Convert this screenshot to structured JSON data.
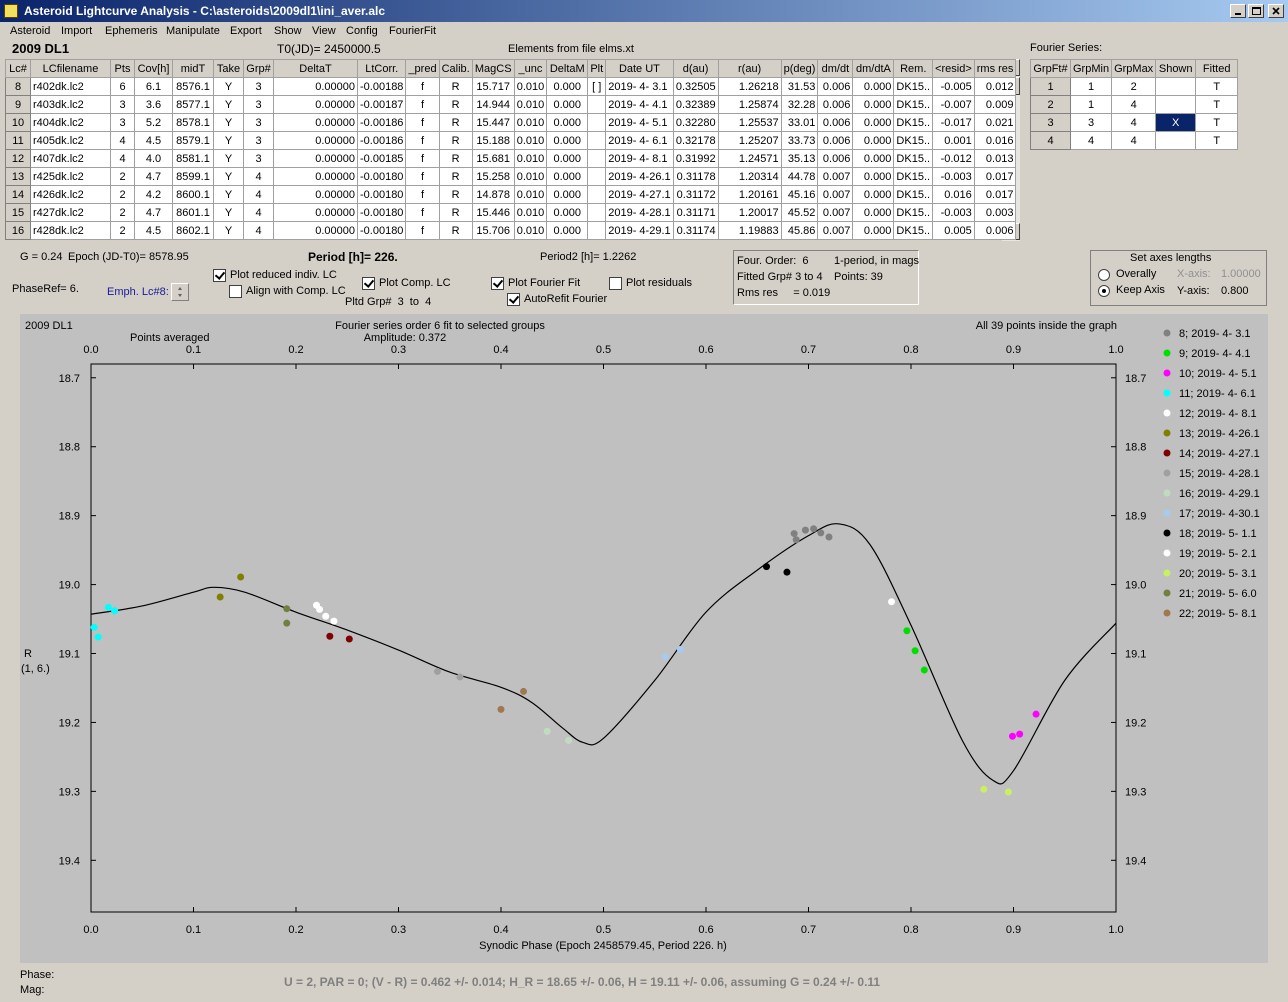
{
  "window": {
    "title": "Asteroid Lightcurve Analysis - C:\\asteroids\\2009dl1\\ini_aver.alc"
  },
  "menu": [
    "Asteroid",
    "Import",
    "Ephemeris",
    "Manipulate",
    "Export",
    "Show",
    "View",
    "Config",
    "FourierFit"
  ],
  "header": {
    "object": "2009 DL1",
    "t0": "T0(JD)= 2450000.5",
    "elements": "Elements from file elms.xt",
    "fourier_title": "Fourier Series:"
  },
  "lc_table": {
    "columns": [
      "Lc#",
      "LCfilename",
      "Pts",
      "Cov[h]",
      "midT",
      "Take",
      "Grp#",
      "DeltaT",
      "LtCorr.",
      "_pred",
      "Calib.",
      "MagCS",
      "_unc",
      "DeltaM",
      "Plt",
      "Date UT",
      "d(au)",
      "r(au)",
      "p(deg)",
      "dm/dt",
      "dm/dtA",
      "Rem.",
      "<resid>",
      "rms res"
    ],
    "rows": [
      [
        "8",
        "r402dk.lc2",
        "6",
        "6.1",
        "8576.1",
        "Y",
        "3",
        "0.00000",
        "-0.00188",
        "f",
        "R",
        "15.717",
        "0.010",
        "0.000",
        "[ ]",
        "2019- 4- 3.1",
        "0.32505",
        "1.26218",
        "31.53",
        "0.006",
        "0.000",
        "DK15..",
        "-0.005",
        "0.012"
      ],
      [
        "9",
        "r403dk.lc2",
        "3",
        "3.6",
        "8577.1",
        "Y",
        "3",
        "0.00000",
        "-0.00187",
        "f",
        "R",
        "14.944",
        "0.010",
        "0.000",
        null,
        "2019- 4- 4.1",
        "0.32389",
        "1.25874",
        "32.28",
        "0.006",
        "0.000",
        "DK15..",
        "-0.007",
        "0.009"
      ],
      [
        "10",
        "r404dk.lc2",
        "3",
        "5.2",
        "8578.1",
        "Y",
        "3",
        "0.00000",
        "-0.00186",
        "f",
        "R",
        "15.447",
        "0.010",
        "0.000",
        null,
        "2019- 4- 5.1",
        "0.32280",
        "1.25537",
        "33.01",
        "0.006",
        "0.000",
        "DK15..",
        "-0.017",
        "0.021"
      ],
      [
        "11",
        "r405dk.lc2",
        "4",
        "4.5",
        "8579.1",
        "Y",
        "3",
        "0.00000",
        "-0.00186",
        "f",
        "R",
        "15.188",
        "0.010",
        "0.000",
        null,
        "2019- 4- 6.1",
        "0.32178",
        "1.25207",
        "33.73",
        "0.006",
        "0.000",
        "DK15..",
        "0.001",
        "0.016"
      ],
      [
        "12",
        "r407dk.lc2",
        "4",
        "4.0",
        "8581.1",
        "Y",
        "3",
        "0.00000",
        "-0.00185",
        "f",
        "R",
        "15.681",
        "0.010",
        "0.000",
        null,
        "2019- 4- 8.1",
        "0.31992",
        "1.24571",
        "35.13",
        "0.006",
        "0.000",
        "DK15..",
        "-0.012",
        "0.013"
      ],
      [
        "13",
        "r425dk.lc2",
        "2",
        "4.7",
        "8599.1",
        "Y",
        "4",
        "0.00000",
        "-0.00180",
        "f",
        "R",
        "15.258",
        "0.010",
        "0.000",
        null,
        "2019- 4-26.1",
        "0.31178",
        "1.20314",
        "44.78",
        "0.007",
        "0.000",
        "DK15..",
        "-0.003",
        "0.017"
      ],
      [
        "14",
        "r426dk.lc2",
        "2",
        "4.2",
        "8600.1",
        "Y",
        "4",
        "0.00000",
        "-0.00180",
        "f",
        "R",
        "14.878",
        "0.010",
        "0.000",
        null,
        "2019- 4-27.1",
        "0.31172",
        "1.20161",
        "45.16",
        "0.007",
        "0.000",
        "DK15..",
        "0.016",
        "0.017"
      ],
      [
        "15",
        "r427dk.lc2",
        "2",
        "4.7",
        "8601.1",
        "Y",
        "4",
        "0.00000",
        "-0.00180",
        "f",
        "R",
        "15.446",
        "0.010",
        "0.000",
        null,
        "2019- 4-28.1",
        "0.31171",
        "1.20017",
        "45.52",
        "0.007",
        "0.000",
        "DK15..",
        "-0.003",
        "0.003"
      ],
      [
        "16",
        "r428dk.lc2",
        "2",
        "4.5",
        "8602.1",
        "Y",
        "4",
        "0.00000",
        "-0.00180",
        "f",
        "R",
        "15.706",
        "0.010",
        "0.000",
        null,
        "2019- 4-29.1",
        "0.31174",
        "1.19883",
        "45.86",
        "0.007",
        "0.000",
        "DK15..",
        "0.005",
        "0.006"
      ]
    ]
  },
  "fourier_table": {
    "columns": [
      "GrpFt#",
      "GrpMin",
      "GrpMax",
      "Shown",
      "Fitted"
    ],
    "rows": [
      [
        "1",
        "1",
        "2",
        null,
        "T"
      ],
      [
        "2",
        "1",
        "4",
        null,
        "T"
      ],
      [
        "3",
        "3",
        "4",
        "X",
        "T"
      ],
      [
        "4",
        "4",
        "4",
        null,
        "T"
      ]
    ]
  },
  "info": {
    "g": "G = 0.24",
    "epoch": "Epoch (JD-T0)= 8578.95",
    "period": "Period [h]= 226.",
    "period2": "Period2 [h]= 1.2262",
    "phase_ref": "PhaseRef= 6.",
    "emph": "Emph. Lc#8:",
    "plotted_groups": "Pltd Grp#  3  to  4"
  },
  "checkboxes": [
    {
      "label": "Plot reduced indiv. LC",
      "checked": true
    },
    {
      "label": "Align with Comp. LC",
      "checked": false
    },
    {
      "label": "Plot Comp. LC",
      "checked": true
    },
    {
      "label": "Plot Fourier Fit",
      "checked": true
    },
    {
      "label": "AutoRefit Fourier",
      "checked": true
    },
    {
      "label": "Plot residuals",
      "checked": false
    }
  ],
  "fit_box": {
    "order": "Four. Order:  6",
    "mode": "1-period, in mags",
    "groups": "Fitted Grp# 3 to 4",
    "points": "Points: 39",
    "rms": "Rms res     = 0.019"
  },
  "axes_box": {
    "title": "Set axes lengths",
    "options": [
      {
        "label": "Overally",
        "selected": false
      },
      {
        "label": "Keep Axis",
        "selected": true
      }
    ],
    "x_label": "X-axis:",
    "x_value": "1.00000",
    "y_label": "Y-axis:",
    "y_value": "0.800"
  },
  "chart_data": {
    "type": "scatter",
    "object": "2009 DL1",
    "title": "Fourier series order 6 fit to selected groups",
    "subtitle": "Amplitude: 0.372",
    "note_left": "Points averaged",
    "note_right": "All 39 points inside the graph",
    "xlabel": "Synodic Phase (Epoch 2458579.45, Period 226. h)",
    "ylabel": [
      "R",
      "(1, 6.)"
    ],
    "xlim": [
      0,
      1
    ],
    "ylim": [
      18.68,
      19.475
    ],
    "y_inverted": true,
    "xticks": [
      {
        "value": 0,
        "label": "0.0"
      },
      0.1,
      0.2,
      0.3,
      0.4,
      0.5,
      0.6,
      0.7,
      0.8,
      0.9,
      {
        "value": 1,
        "label": "1.0"
      }
    ],
    "yticks": [
      18.7,
      18.8,
      18.9,
      {
        "value": 19,
        "label": "19.0"
      },
      19.1,
      19.2,
      19.3,
      19.4
    ],
    "series": [
      {
        "name": "8; 2019- 4- 3.1",
        "color": "#808080",
        "x": [
          0.686,
          0.688,
          0.697,
          0.705,
          0.712,
          0.72
        ],
        "values": [
          18.926,
          18.935,
          18.921,
          18.919,
          18.925,
          18.931
        ]
      },
      {
        "name": "9; 2019- 4- 4.1",
        "color": "#00e000",
        "x": [
          0.796,
          0.804,
          0.813
        ],
        "values": [
          19.067,
          19.096,
          19.124
        ]
      },
      {
        "name": "10; 2019- 4- 5.1",
        "color": "#ff00ff",
        "x": [
          0.899,
          0.906,
          0.922
        ],
        "values": [
          19.22,
          19.217,
          19.188
        ]
      },
      {
        "name": "11; 2019- 4- 6.1",
        "color": "#00ffff",
        "x": [
          0.003,
          0.007,
          0.017,
          0.023
        ],
        "values": [
          19.062,
          19.076,
          19.033,
          19.038
        ]
      },
      {
        "name": "12; 2019- 4- 8.1",
        "color": "#ffffff",
        "x": [
          0.22,
          0.223,
          0.229,
          0.237
        ],
        "values": [
          19.03,
          19.036,
          19.046,
          19.053
        ]
      },
      {
        "name": "13; 2019- 4-26.1",
        "color": "#808000",
        "x": [
          0.126,
          0.146
        ],
        "values": [
          19.018,
          18.989
        ]
      },
      {
        "name": "14; 2019- 4-27.1",
        "color": "#800000",
        "x": [
          0.233,
          0.252
        ],
        "values": [
          19.075,
          19.079
        ]
      },
      {
        "name": "15; 2019- 4-28.1",
        "color": "#a0a0a0",
        "x": [
          0.338,
          0.36
        ],
        "values": [
          19.126,
          19.134
        ]
      },
      {
        "name": "16; 2019- 4-29.1",
        "color": "#c0dcc0",
        "x": [
          0.445,
          0.466
        ],
        "values": [
          19.213,
          19.226
        ]
      },
      {
        "name": "17; 2019- 4-30.1",
        "color": "#a6caf0",
        "x": [
          0.56,
          0.575
        ],
        "values": [
          19.105,
          19.094
        ]
      },
      {
        "name": "18; 2019- 5- 1.1",
        "color": "#000000",
        "x": [
          0.659,
          0.679
        ],
        "values": [
          18.974,
          18.982
        ]
      },
      {
        "name": "19; 2019- 5- 2.1",
        "color": "#ffffff",
        "x": [
          0.781
        ],
        "values": [
          19.025
        ]
      },
      {
        "name": "20; 2019- 5- 3.1",
        "color": "#c8f060",
        "x": [
          0.871,
          0.895
        ],
        "values": [
          19.297,
          19.301
        ]
      },
      {
        "name": "21; 2019- 5- 6.0",
        "color": "#708040",
        "x": [
          0.191,
          0.191
        ],
        "values": [
          19.035,
          19.056
        ]
      },
      {
        "name": "22; 2019- 5- 8.1",
        "color": "#a07850",
        "x": [
          0.4,
          0.422
        ],
        "values": [
          19.181,
          19.155
        ]
      }
    ],
    "fit": {
      "color": "#000000",
      "x": [
        0,
        0.05,
        0.1,
        0.12,
        0.15,
        0.2,
        0.25,
        0.3,
        0.35,
        0.4,
        0.43,
        0.46,
        0.48,
        0.5,
        0.55,
        0.6,
        0.65,
        0.7,
        0.73,
        0.76,
        0.8,
        0.85,
        0.88,
        0.9,
        0.95,
        1
      ],
      "values": [
        19.043,
        19.031,
        19.011,
        19.004,
        19.011,
        19.04,
        19.066,
        19.095,
        19.127,
        19.149,
        19.171,
        19.208,
        19.229,
        19.223,
        19.139,
        19.04,
        18.979,
        18.929,
        18.912,
        18.942,
        19.059,
        19.226,
        19.284,
        19.27,
        19.139,
        19.056
      ]
    }
  },
  "status": {
    "phase": "Phase:",
    "mag": "Mag:",
    "summary": "U = 2, PAR = 0; (V - R) = 0.462 +/- 0.014; H_R = 18.65 +/- 0.06, H = 19.11 +/- 0.06, assuming G = 0.24 +/- 0.11"
  }
}
